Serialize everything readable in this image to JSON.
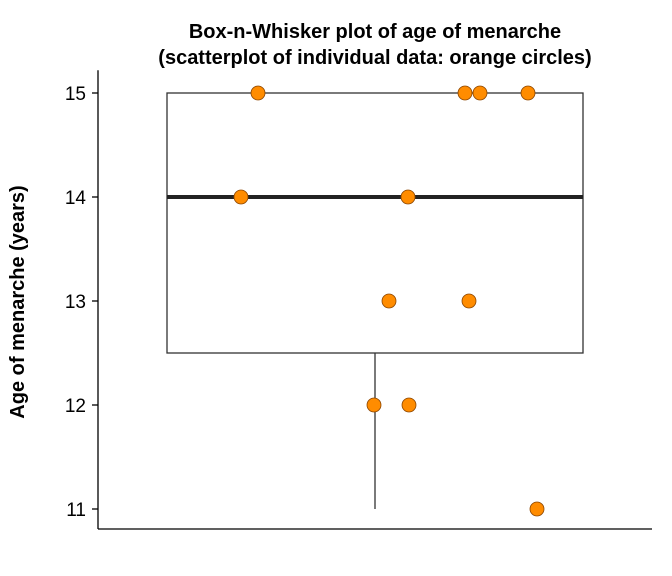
{
  "chart_data": {
    "type": "box",
    "title_lines": [
      "Box-n-Whisker plot of age of menarche",
      "(scatterplot of individual data: orange circles)"
    ],
    "xlabel": "",
    "ylabel": "Age of menarche (years)",
    "ylim": [
      10.8,
      15.2
    ],
    "yticks": [
      {
        "value": 11,
        "label": "11"
      },
      {
        "value": 12,
        "label": "12"
      },
      {
        "value": 13,
        "label": "13"
      },
      {
        "value": 14,
        "label": "14"
      },
      {
        "value": 15,
        "label": "15"
      }
    ],
    "box": {
      "min": 11,
      "q1": 12.5,
      "median": 14,
      "q3": 15,
      "max": 15
    },
    "points": {
      "color": "#ff8c00",
      "edge_color": "#8b4500",
      "values": [
        15,
        15,
        15,
        15,
        14,
        14,
        13,
        13,
        12,
        12,
        11
      ]
    },
    "grid": false,
    "legend": "none"
  }
}
